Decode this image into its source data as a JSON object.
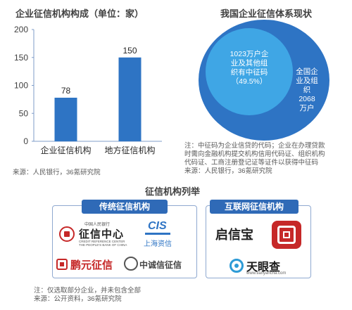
{
  "bar_section": {
    "title": "企业征信机构构成（单位：家）",
    "source": "来源：人民银行，36氪研究院"
  },
  "chart_data": {
    "type": "bar",
    "title": "企业征信机构构成（单位：家）",
    "categories": [
      "企业征信机构",
      "地方征信机构"
    ],
    "values": [
      78,
      150
    ],
    "ylim": [
      0,
      200
    ],
    "yticks": [
      "0",
      "50",
      "100",
      "150",
      "200"
    ],
    "grid": false,
    "bar_color": "#2e74c4",
    "axis_color": "#7f9cc9"
  },
  "status_section": {
    "title": "我国企业征信体系现状",
    "inner_label": "1023万户企业及其他组织有中征码（49.5%）",
    "inner_lines": [
      "1023万户企",
      "业及其他组",
      "织有中征码",
      "（49.5%）"
    ],
    "outer_lines": [
      "全国企",
      "业及组",
      "织",
      "2068",
      "万户"
    ],
    "note_lines": [
      "注：中征码为企业信贷的代码；企业在办理贷款",
      "时需向金融机构提交机构信用代码证、组织机构",
      "代码证、工商注册登记证等证件以获得中征码"
    ],
    "source": "来源：人民银行，36氪研究院",
    "outer_color": "#2e74c4",
    "inner_color": "#3fa6e5"
  },
  "institutions_section": {
    "title": "征信机构列举",
    "traditional": {
      "label": "传统征信机构",
      "logos": {
        "pbc_small": "中国人民银行",
        "pbc_name": "征信中心",
        "pbc_en1": "CREDIT REFERENCE CENTER",
        "pbc_en2": "THE PEOPLE'S BANK OF CHINA",
        "cis_mark": "CIS",
        "cis_name": "上海资信",
        "pengyuan": "鹏元征信",
        "zhongcheng": "中诚信征信"
      }
    },
    "internet": {
      "label": "互联网征信机构",
      "logos": {
        "qixinbao": "启信宝",
        "tianyancha": "天眼查",
        "tianyancha_url": "www.tianyancha.com"
      }
    },
    "note": "注：仅选取部分企业，并未包含全部",
    "source": "来源：公开资料，36氪研究院"
  },
  "colors": {
    "primary_blue": "#2e74c4",
    "group_title_bg": "#2f6ab7",
    "red_logo": "#c62828"
  }
}
